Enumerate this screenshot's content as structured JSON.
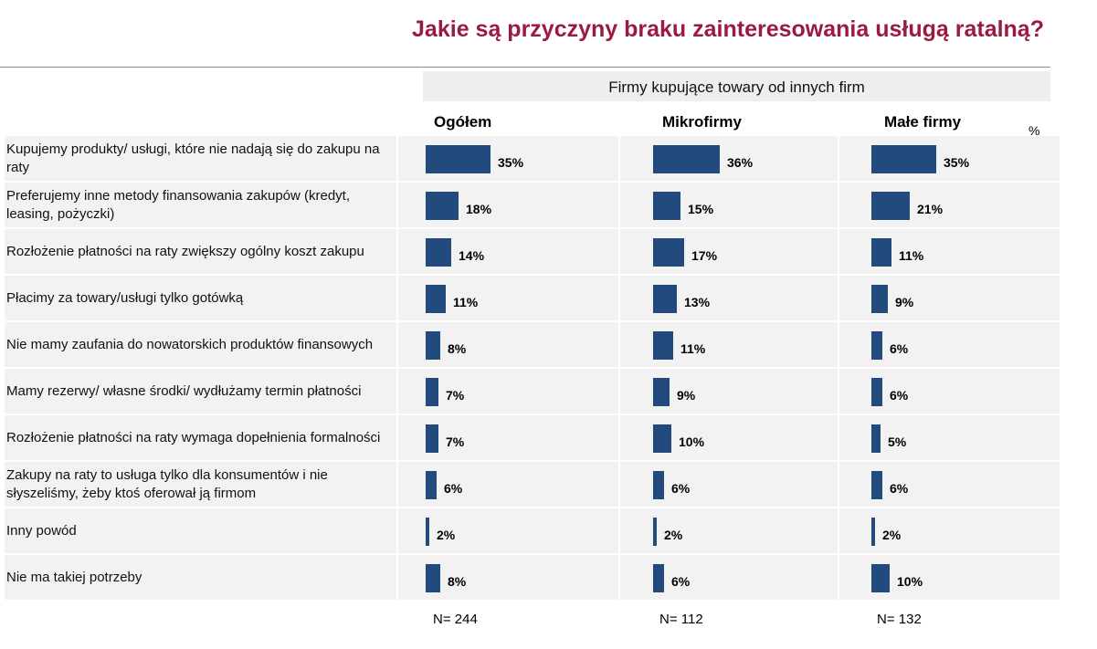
{
  "title": "Jakie są przyczyny braku zainteresowania usługą ratalną?",
  "group_header": "Firmy kupujące towary od innych firm",
  "unit": "%",
  "colors": {
    "bar": "#234a7d",
    "title": "#9b1b3f",
    "row_bg": "#f2f2f2"
  },
  "chart_data": {
    "type": "bar",
    "orientation": "horizontal",
    "title": "Jakie są przyczyny braku zainteresowania usługą ratalną?",
    "categories": [
      "Kupujemy produkty/ usługi, które nie nadają się do zakupu na raty",
      "Preferujemy inne metody finansowania zakupów (kredyt, leasing, pożyczki)",
      "Rozłożenie płatności na raty zwiększy ogólny koszt zakupu",
      "Płacimy za towary/usługi tylko gotówką",
      "Nie mamy zaufania do nowatorskich produktów finansowych",
      "Mamy rezerwy/ własne środki/ wydłużamy termin płatności",
      "Rozłożenie płatności na raty wymaga dopełnienia formalności",
      "Zakupy na raty to usługa tylko dla konsumentów i nie słyszeliśmy, żeby ktoś oferował ją firmom",
      "Inny powód",
      "Nie ma takiej potrzeby"
    ],
    "series": [
      {
        "name": "Ogółem",
        "n": "N= 244",
        "values": [
          35,
          18,
          14,
          11,
          8,
          7,
          7,
          6,
          2,
          8
        ],
        "labels": [
          "35%",
          "18%",
          "14%",
          "11%",
          "8%",
          "7%",
          "7%",
          "6%",
          "2%",
          "8%"
        ]
      },
      {
        "name": "Mikrofirmy",
        "n": "N= 112",
        "values": [
          36,
          15,
          17,
          13,
          11,
          9,
          10,
          6,
          2,
          6
        ],
        "labels": [
          "36%",
          "15%",
          "17%",
          "13%",
          "11%",
          "9%",
          "10%",
          "6%",
          "2%",
          "6%"
        ]
      },
      {
        "name": "Małe firmy",
        "n": "N= 132",
        "values": [
          35,
          21,
          11,
          9,
          6,
          6,
          5,
          6,
          2,
          10
        ],
        "labels": [
          "35%",
          "21%",
          "11%",
          "9%",
          "6%",
          "6%",
          "5%",
          "6%",
          "2%",
          "10%"
        ]
      }
    ],
    "xlim": [
      0,
      100
    ],
    "ylabel": "%"
  }
}
